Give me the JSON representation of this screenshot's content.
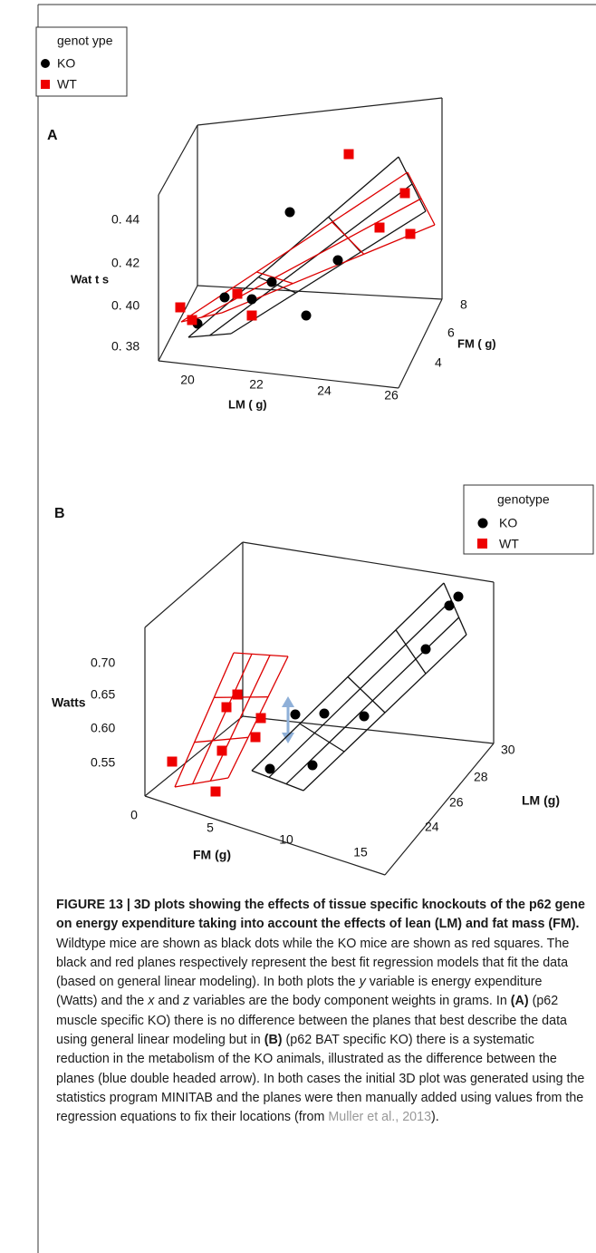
{
  "panel_a": {
    "label": "A",
    "legend": {
      "title": "genot ype",
      "items": [
        "KO",
        "WT"
      ]
    },
    "y_axis": {
      "title": "Wat t s",
      "ticks": [
        "0. 44",
        "0. 42",
        "0. 40",
        "0. 38"
      ]
    },
    "x_axis": {
      "title": "LM ( g)",
      "ticks": [
        "20",
        "22",
        "24",
        "26"
      ]
    },
    "z_axis": {
      "title": "FM ( g)",
      "ticks": [
        "8",
        "6",
        "4"
      ]
    }
  },
  "panel_b": {
    "label": "B",
    "legend": {
      "title": "genotype",
      "items": [
        "KO",
        "WT"
      ]
    },
    "y_axis": {
      "title": "Watts",
      "ticks": [
        "0.70",
        "0.65",
        "0.60",
        "0.55"
      ]
    },
    "x_axis": {
      "title": "FM (g)",
      "ticks": [
        "0",
        "5",
        "10",
        "15"
      ]
    },
    "z_axis": {
      "title": "LM (g)",
      "ticks": [
        "30",
        "28",
        "26",
        "24"
      ]
    }
  },
  "caption": {
    "title": "FIGURE 13 | 3D plots showing the effects of tissue specific knockouts of the p62 gene on energy expenditure taking into account the effects of lean (LM) and fat mass (FM).",
    "body": [
      " Wildtype mice are shown as black dots while the KO mice are shown as red squares. The black and red planes respectively represent the best fit regression models that fit the data (based on general linear modeling). In both plots the ",
      "y",
      " variable is energy expenditure (Watts) and the ",
      "x",
      " and ",
      "z",
      " variables are the body component weights in grams. In ",
      "(A)",
      " (p62 muscle specific KO) there is no difference between the planes that best describe the data using general linear modeling but in ",
      "(B)",
      " (p62 BAT specific KO) there is a systematic reduction in the metabolism of the KO animals, illustrated as the difference between the planes (blue double headed arrow). In both cases the initial 3D plot was generated using the statistics program MINITAB and the planes were then manually added using values from the regression equations to fix their locations (from ",
      "Muller et al., 2013",
      ")."
    ]
  }
}
